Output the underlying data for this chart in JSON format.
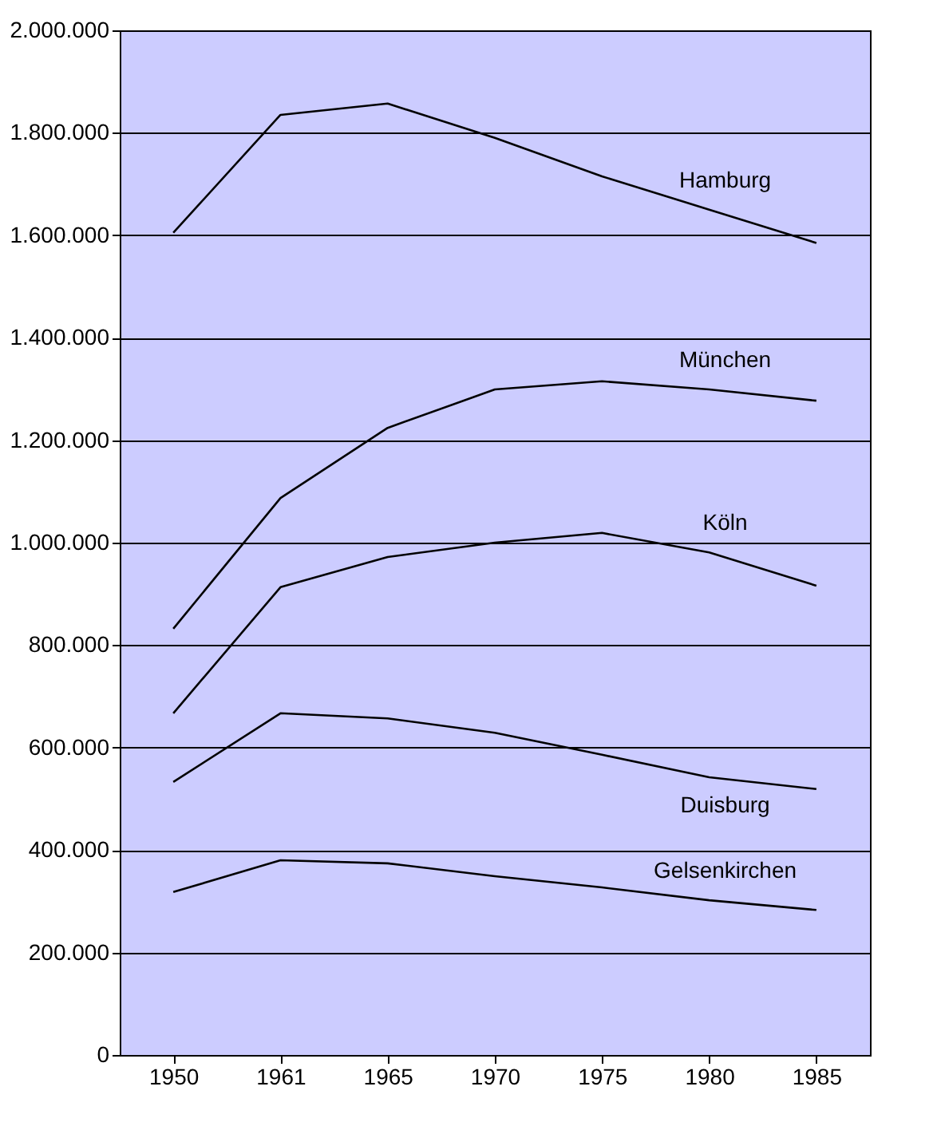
{
  "chart_data": {
    "type": "line",
    "categories": [
      "1950",
      "1961",
      "1965",
      "1970",
      "1975",
      "1980",
      "1985"
    ],
    "series": [
      {
        "name": "Hamburg",
        "color": "#000000",
        "values": [
          1605000,
          1835000,
          1857000,
          1790000,
          1715000,
          1650000,
          1585000
        ]
      },
      {
        "name": "München",
        "color": "#000000",
        "values": [
          832000,
          1087000,
          1224000,
          1299000,
          1315000,
          1299000,
          1277000
        ]
      },
      {
        "name": "Köln",
        "color": "#000000",
        "values": [
          667000,
          913000,
          972000,
          1000000,
          1019000,
          981000,
          916000
        ]
      },
      {
        "name": "Duisburg",
        "color": "#000000",
        "values": [
          533000,
          667000,
          657000,
          629000,
          586000,
          542000,
          519000
        ]
      },
      {
        "name": "Gelsenkirchen",
        "color": "#000000",
        "values": [
          318000,
          380000,
          374000,
          349000,
          327000,
          302000,
          283000
        ]
      }
    ],
    "ylim": [
      0,
      2000000
    ],
    "yticks": [
      {
        "value": 0,
        "label": "0"
      },
      {
        "value": 200000,
        "label": "200.000"
      },
      {
        "value": 400000,
        "label": "400.000"
      },
      {
        "value": 600000,
        "label": "600.000"
      },
      {
        "value": 800000,
        "label": "800.000"
      },
      {
        "value": 1000000,
        "label": "1.000.000"
      },
      {
        "value": 1200000,
        "label": "1.200.000"
      },
      {
        "value": 1400000,
        "label": "1.400.000"
      },
      {
        "value": 1600000,
        "label": "1.600.000"
      },
      {
        "value": 1800000,
        "label": "1.800.000"
      },
      {
        "value": 2000000,
        "label": "2.000.000"
      }
    ],
    "grid": "y",
    "marker": "none",
    "line_style": "solid"
  }
}
